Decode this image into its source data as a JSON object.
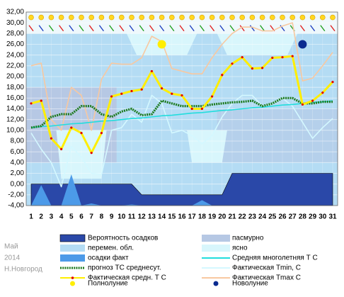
{
  "chart_data": {
    "type": "line",
    "categories": [
      "1",
      "2",
      "3",
      "4",
      "5",
      "6",
      "7",
      "8",
      "9",
      "10",
      "11",
      "12",
      "13",
      "14",
      "15",
      "16",
      "17",
      "18",
      "19",
      "20",
      "21",
      "22",
      "23",
      "24",
      "25",
      "26",
      "27",
      "28",
      "29",
      "30",
      "31"
    ],
    "ylim": [
      -4,
      32
    ],
    "yticks": [
      {
        "value": -4,
        "label": "-4,00"
      },
      {
        "value": -2,
        "label": "-2,00"
      },
      {
        "value": 0,
        "label": "0,00"
      },
      {
        "value": 2,
        "label": "2,00"
      },
      {
        "value": 4,
        "label": "4,00"
      },
      {
        "value": 6,
        "label": "6,00"
      },
      {
        "value": 8,
        "label": "8,00"
      },
      {
        "value": 10,
        "label": "10,00"
      },
      {
        "value": 12,
        "label": "12,00"
      },
      {
        "value": 14,
        "label": "14,00"
      },
      {
        "value": 16,
        "label": "16,00"
      },
      {
        "value": 18,
        "label": "18,00"
      },
      {
        "value": 20,
        "label": "20,00"
      },
      {
        "value": 22,
        "label": "22,00"
      },
      {
        "value": 24,
        "label": "24,00"
      },
      {
        "value": 26,
        "label": "26,00"
      },
      {
        "value": 28,
        "label": "28,00"
      },
      {
        "value": 30,
        "label": "30,00"
      },
      {
        "value": 32,
        "label": "32,00"
      }
    ],
    "grid": true,
    "series": [
      {
        "name": "Вероятность осадков",
        "kind": "area",
        "color": "#2a48a8",
        "values": [
          0,
          0,
          0,
          0,
          0,
          0,
          0,
          0,
          0,
          0,
          0,
          -2,
          -2,
          -2,
          -2,
          -2,
          -2,
          -2,
          -2,
          -2,
          2,
          2,
          2,
          2,
          2,
          2,
          2,
          2,
          2,
          2,
          2
        ]
      },
      {
        "name": "осадки факт",
        "kind": "area",
        "color": "#4c9ae8",
        "values": [
          -4,
          -0.2,
          -4,
          -4,
          1.8,
          -4,
          -3.6,
          -4,
          -4,
          -4,
          -3.8,
          -4,
          -4,
          -4,
          -4,
          -4,
          -4,
          -3,
          -4,
          -4,
          -4,
          -4,
          -4,
          -4,
          -4,
          -4,
          -4,
          -4,
          -4,
          -4,
          -4
        ]
      },
      {
        "name": "прогноз ТС среднесут.",
        "kind": "dotted",
        "color": "#1e7a1e",
        "values": [
          10.5,
          10.8,
          12.5,
          13,
          13,
          14.5,
          14.5,
          13,
          12.5,
          13.5,
          14,
          12.8,
          13,
          15.5,
          15,
          14.5,
          14.5,
          14.5,
          14.8,
          15,
          15.2,
          15.3,
          15.5,
          14.5,
          15,
          16,
          16,
          15,
          15,
          15.3,
          15.3
        ]
      },
      {
        "name": "Фактическая средн. Т С",
        "kind": "line",
        "color": "#ffee00",
        "dot_color": "#e00000",
        "values": [
          15,
          15.5,
          8.5,
          6.5,
          10.5,
          9.5,
          5.8,
          9.5,
          16.3,
          16.8,
          17.3,
          17.6,
          21,
          17.8,
          16.8,
          16.5,
          14,
          14,
          16.3,
          20.3,
          22.4,
          23.6,
          21.5,
          21.6,
          23.5,
          23.6,
          23.8,
          14.8,
          15.5,
          17,
          19
        ]
      },
      {
        "name": "Средняя многолетняя Т С",
        "kind": "line",
        "color": "#22dddd",
        "values": [
          10.5,
          10.7,
          10.8,
          11,
          11.2,
          11.3,
          11.5,
          11.7,
          11.8,
          12,
          12.2,
          12.3,
          12.5,
          12.7,
          12.8,
          13,
          13.2,
          13.3,
          13.5,
          13.7,
          13.8,
          14,
          14.2,
          14.3,
          14.5,
          14.7,
          14.8,
          15,
          15.2,
          15.3,
          15.5
        ]
      },
      {
        "name": "Фактическая Tmin, C",
        "kind": "line",
        "color": "#d4f8ff",
        "values": [
          9.5,
          6.5,
          4,
          -0.5,
          7,
          5,
          2,
          1.8,
          10,
          10.5,
          13,
          11.5,
          16.5,
          15,
          9.5,
          10,
          9,
          7.5,
          9,
          12.5,
          15,
          16.5,
          16.5,
          14.5,
          15,
          16,
          14.5,
          11.5,
          8.5,
          10.5,
          12.2
        ]
      },
      {
        "name": "Фактическая Tmax C",
        "kind": "line",
        "color": "#f8c8a0",
        "values": [
          22,
          22.5,
          12,
          10,
          18,
          16.5,
          10,
          19.5,
          22.5,
          22.3,
          22.3,
          23.5,
          27.5,
          26.5,
          21.5,
          21,
          20.5,
          20.5,
          23.5,
          26,
          28,
          29.2,
          29.2,
          28.5,
          28.5,
          29.4,
          30,
          19.2,
          19.7,
          22,
          24.5
        ]
      }
    ],
    "backgrounds": [
      {
        "name": "пасмурно",
        "color": "#b6c8e4"
      },
      {
        "name": "перемен. обл.",
        "color": "#b4dcf4"
      },
      {
        "name": "ясно",
        "color": "#d8f6fc"
      }
    ],
    "markers": [
      {
        "name": "Полнолуние",
        "color": "#ffee00",
        "category": "14",
        "value": 26
      },
      {
        "name": "Новолуние",
        "color": "#0a2a90",
        "category": "28",
        "value": 26
      }
    ],
    "footer": [
      "Май",
      "2014",
      "Н.Новгород"
    ]
  }
}
